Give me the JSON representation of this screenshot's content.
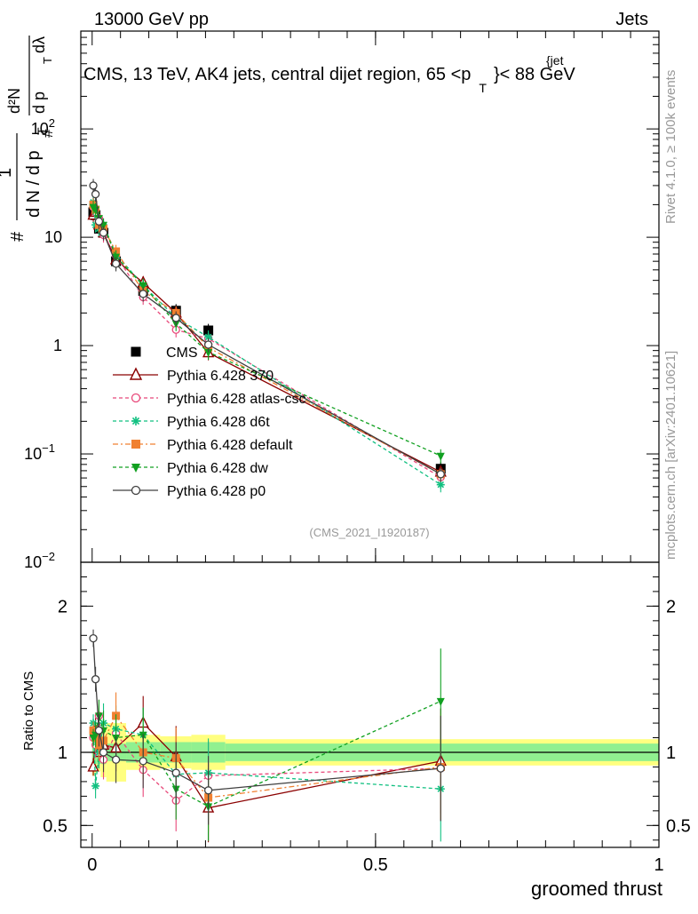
{
  "header": {
    "left": "13000 GeV pp",
    "right": "Jets",
    "title_main": "CMS, 13 TeV, AK4 jets, central dijet region, 65 <p",
    "title_sup": "{jet",
    "title_sub": "T",
    "title_end": "}< 88 GeV",
    "side_top": "Rivet 4.1.0, ≥ 100k events",
    "side_bottom": "mcplots.cern.ch [arXiv:2401.10621]",
    "watermark": "(CMS_2021_I1920187)"
  },
  "chart_data": [
    {
      "type": "line",
      "panel": "main",
      "yscale": "log",
      "ylim": [
        0.01,
        800
      ],
      "xlim": [
        -0.02,
        1.0
      ],
      "ylabel": "1/(dN/dp_T) · d²N/(dp_T dλ)",
      "ylabel_parts": {
        "hash": "#",
        "one": "1",
        "dN": "d N / d p",
        "T": "T",
        "num": "d²N",
        "den": "d p",
        "dl": "dλ"
      },
      "yticks": [
        {
          "v": 0.01,
          "base": "10",
          "exp": "−2"
        },
        {
          "v": 0.1,
          "base": "10",
          "exp": "−1"
        },
        {
          "v": 1,
          "base": "1",
          "exp": ""
        },
        {
          "v": 10,
          "base": "10",
          "exp": ""
        },
        {
          "v": 100,
          "base": "10",
          "exp": "2"
        }
      ],
      "x": [
        0.002,
        0.006,
        0.012,
        0.02,
        0.042,
        0.09,
        0.148,
        0.205,
        0.615
      ],
      "series": [
        {
          "name": "CMS",
          "color": "#000000",
          "marker": "square",
          "dash": "",
          "values": [
            17,
            16,
            12,
            11,
            6,
            3.2,
            2.1,
            1.38,
            0.073
          ]
        },
        {
          "name": "Pythia 6.428 370",
          "color": "#8b0000",
          "marker": "triangle-open",
          "dash": "",
          "values": [
            16,
            17,
            13,
            11,
            6.2,
            3.8,
            2.0,
            0.86,
            0.068
          ]
        },
        {
          "name": "Pythia 6.428 atlas-csc",
          "color": "#e8487a",
          "marker": "circle-open",
          "dash": "4,3",
          "values": [
            19,
            17,
            15,
            10.5,
            6.8,
            2.8,
            1.4,
            1.16,
            0.061
          ]
        },
        {
          "name": "Pythia 6.428 d6t",
          "color": "#10c080",
          "marker": "star",
          "dash": "4,3",
          "values": [
            21,
            13,
            12,
            13,
            7.0,
            3.6,
            1.8,
            1.2,
            0.052
          ]
        },
        {
          "name": "Pythia 6.428 default",
          "color": "#f08030",
          "marker": "square",
          "dash": "6,3,2,3",
          "values": [
            20,
            18,
            13,
            12,
            7.4,
            3.2,
            2.0,
            0.96,
            0.065
          ]
        },
        {
          "name": "Pythia 6.428 dw",
          "color": "#10a020",
          "marker": "triangle-down",
          "dash": "4,3",
          "values": [
            19,
            18,
            15,
            13,
            6.6,
            3.6,
            1.6,
            0.87,
            0.096
          ]
        },
        {
          "name": "Pythia 6.428 p0",
          "color": "#404040",
          "marker": "circle-open",
          "dash": "",
          "values": [
            30,
            25,
            14,
            11,
            5.7,
            3.0,
            1.8,
            1.02,
            0.065
          ]
        }
      ]
    },
    {
      "type": "line",
      "panel": "ratio",
      "ylim": [
        0.35,
        2.3
      ],
      "xlim": [
        -0.02,
        1.0
      ],
      "xlabel": "groomed thrust",
      "ylabel": "Ratio to CMS",
      "xticks": [
        {
          "v": 0,
          "label": "0"
        },
        {
          "v": 0.5,
          "label": "0.5"
        },
        {
          "v": 1,
          "label": "1"
        }
      ],
      "yticks": [
        {
          "v": 0.5,
          "label": "0.5"
        },
        {
          "v": 1,
          "label": "1"
        },
        {
          "v": 2,
          "label": "2"
        }
      ],
      "band_edges": [
        0,
        0.004,
        0.008,
        0.015,
        0.025,
        0.06,
        0.12,
        0.175,
        0.235,
        1.0
      ],
      "band_inner": [
        0.1,
        0.08,
        0.08,
        0.08,
        0.06,
        0.07,
        0.07,
        0.07,
        0.06
      ],
      "band_outer": [
        0.16,
        0.14,
        0.13,
        0.17,
        0.2,
        0.12,
        0.11,
        0.12,
        0.09
      ],
      "x": [
        0.002,
        0.006,
        0.012,
        0.02,
        0.042,
        0.09,
        0.148,
        0.205,
        0.615
      ],
      "series": [
        {
          "name": "Pythia 6.428 370",
          "values": [
            0.9,
            1.15,
            1.0,
            1.05,
            1.03,
            1.2,
            0.97,
            0.62,
            0.94
          ]
        },
        {
          "name": "Pythia 6.428 atlas-csc",
          "values": [
            1.1,
            1.05,
            1.25,
            0.95,
            1.13,
            0.88,
            0.67,
            0.84,
            0.89
          ]
        },
        {
          "name": "Pythia 6.428 d6t",
          "values": [
            1.2,
            0.77,
            1.0,
            1.2,
            1.16,
            1.12,
            0.85,
            0.86,
            0.75
          ]
        },
        {
          "name": "Pythia 6.428 default",
          "values": [
            1.15,
            1.1,
            1.05,
            1.08,
            1.25,
            1.0,
            0.96,
            0.69,
            0.9
          ]
        },
        {
          "name": "Pythia 6.428 dw",
          "values": [
            1.1,
            1.12,
            1.25,
            1.15,
            1.1,
            1.12,
            0.75,
            0.63,
            1.35
          ]
        },
        {
          "name": "Pythia 6.428 p0",
          "values": [
            1.78,
            1.5,
            1.15,
            1.0,
            0.95,
            0.94,
            0.86,
            0.74,
            0.89
          ]
        }
      ]
    }
  ]
}
